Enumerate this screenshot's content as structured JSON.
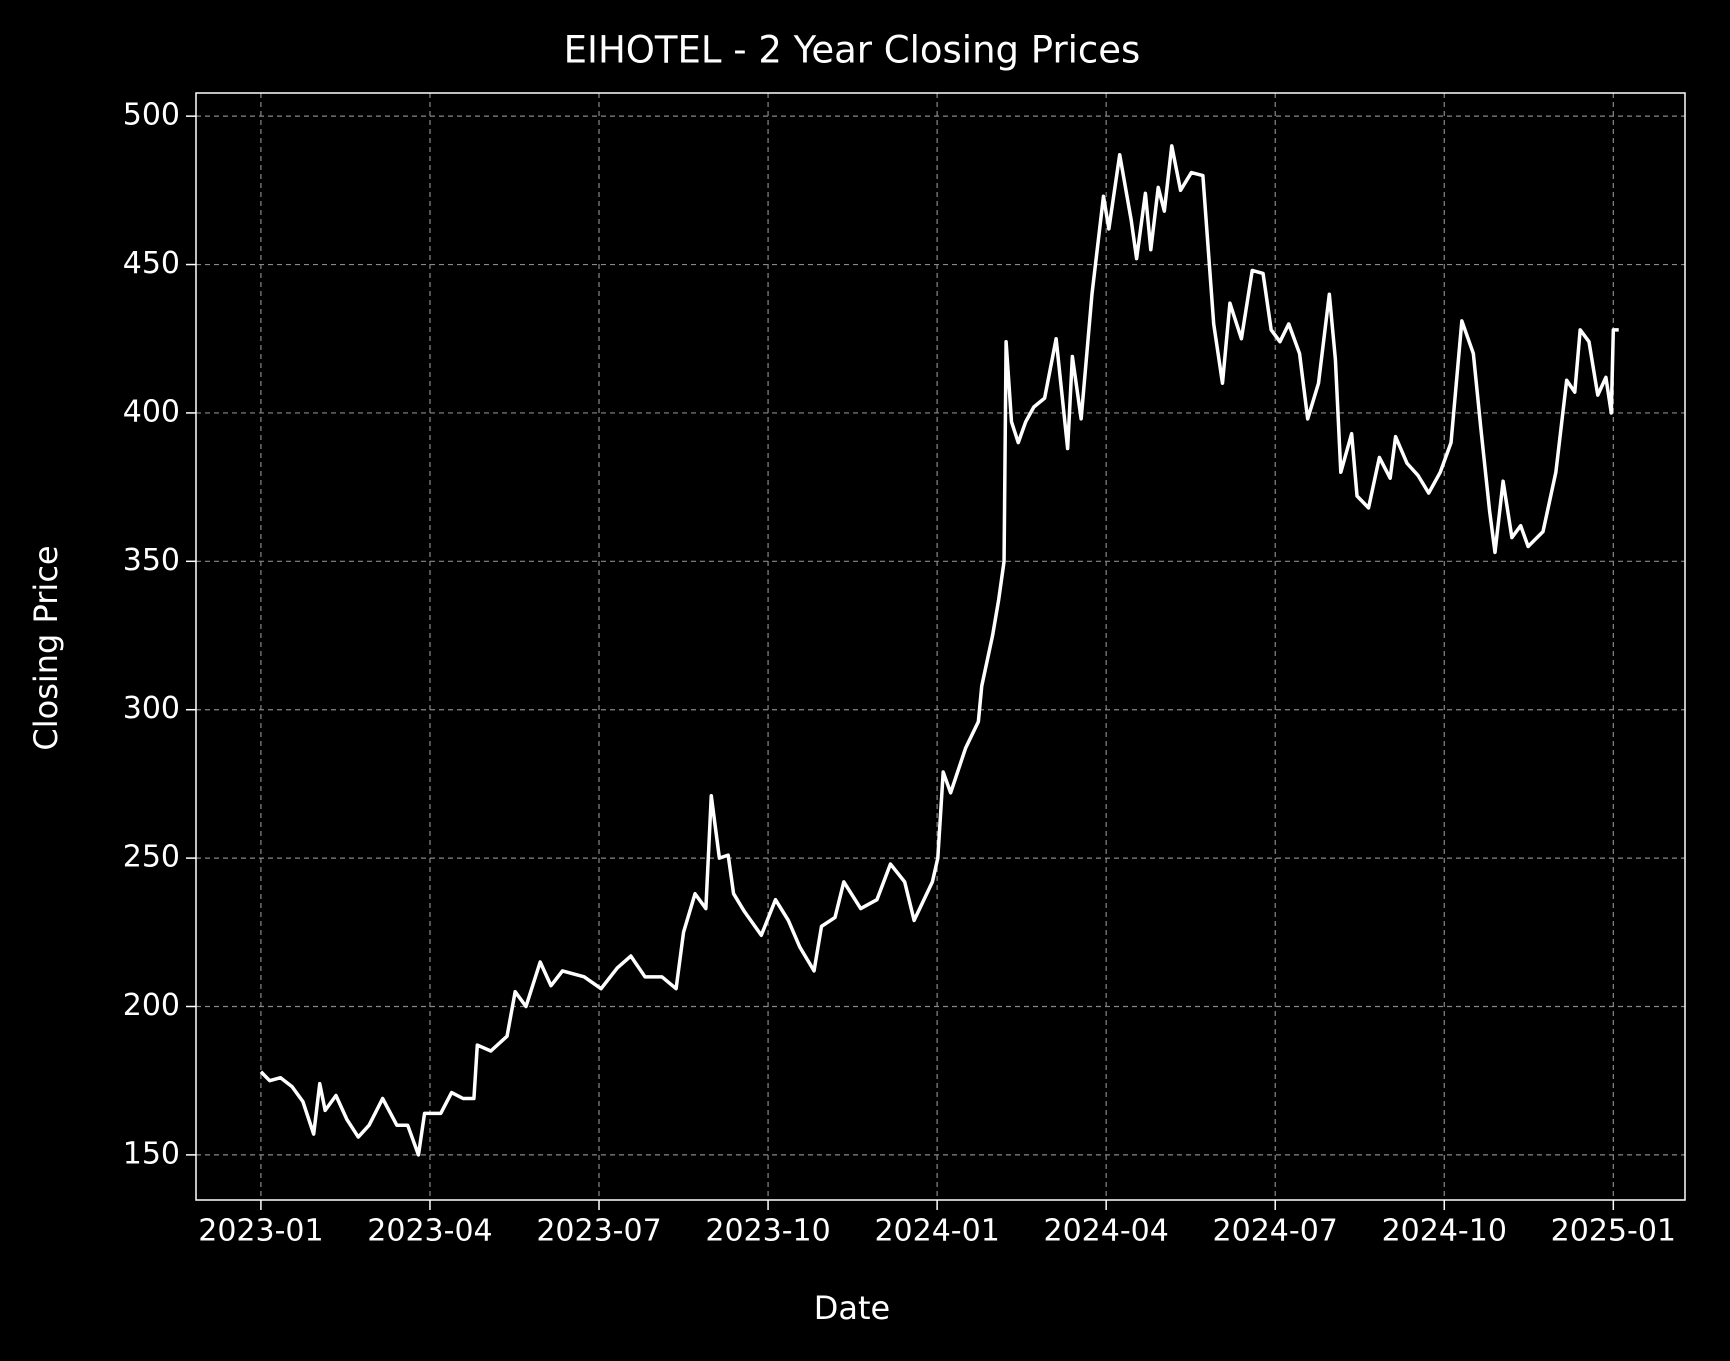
{
  "chart_data": {
    "type": "line",
    "title": "EIHOTEL - 2 Year Closing Prices",
    "xlabel": "Date",
    "ylabel": "Closing Price",
    "color": "#ffffff",
    "grid": true,
    "xlim": [
      2022.904,
      2025.106
    ],
    "ylim": [
      134.8,
      507.8
    ],
    "xticks": [
      {
        "value": 2023,
        "label": "2023-01"
      },
      {
        "value": 2023.25,
        "label": "2023-04"
      },
      {
        "value": 2023.5,
        "label": "2023-07"
      },
      {
        "value": 2023.75,
        "label": "2023-10"
      },
      {
        "value": 2024,
        "label": "2024-01"
      },
      {
        "value": 2024.25,
        "label": "2024-04"
      },
      {
        "value": 2024.5,
        "label": "2024-07"
      },
      {
        "value": 2024.75,
        "label": "2024-10"
      },
      {
        "value": 2025,
        "label": "2025-01"
      }
    ],
    "yticks": [
      150,
      200,
      250,
      300,
      350,
      400,
      450,
      500
    ],
    "x": [
      2023.0,
      2023.013,
      2023.029,
      2023.046,
      2023.062,
      2023.078,
      2023.087,
      2023.095,
      2023.111,
      2023.127,
      2023.144,
      2023.16,
      2023.18,
      2023.201,
      2023.217,
      2023.233,
      2023.242,
      2023.266,
      2023.282,
      2023.299,
      2023.315,
      2023.32,
      2023.34,
      2023.364,
      2023.376,
      2023.392,
      2023.413,
      2023.429,
      2023.446,
      2023.478,
      2023.503,
      2023.527,
      2023.547,
      2023.568,
      2023.593,
      2023.614,
      2023.625,
      2023.642,
      2023.658,
      2023.666,
      2023.678,
      2023.691,
      2023.699,
      2023.715,
      2023.74,
      2023.761,
      2023.78,
      2023.797,
      2023.818,
      2023.829,
      2023.849,
      2023.862,
      2023.887,
      2023.911,
      2023.931,
      2023.952,
      2023.966,
      2023.993,
      2024.001,
      2024.009,
      2024.02,
      2024.042,
      2024.061,
      2024.066,
      2024.082,
      2024.091,
      2024.099,
      2024.102,
      2024.11,
      2024.12,
      2024.131,
      2024.143,
      2024.159,
      2024.176,
      2024.193,
      2024.2,
      2024.213,
      2024.229,
      2024.246,
      2024.254,
      2024.27,
      2024.287,
      2024.295,
      2024.308,
      2024.316,
      2024.327,
      2024.336,
      2024.347,
      2024.36,
      2024.376,
      2024.393,
      2024.409,
      2024.422,
      2024.433,
      2024.45,
      2024.466,
      2024.482,
      2024.494,
      2024.507,
      2024.52,
      2024.536,
      2024.548,
      2024.564,
      2024.58,
      2024.589,
      2024.597,
      2024.613,
      2024.621,
      2024.638,
      2024.654,
      2024.67,
      2024.678,
      2024.695,
      2024.711,
      2024.727,
      2024.744,
      2024.76,
      2024.776,
      2024.793,
      2024.804,
      2024.817,
      2024.825,
      2024.837,
      2024.85,
      2024.863,
      2024.874,
      2024.896,
      2024.915,
      2024.931,
      2024.943,
      2024.951,
      2024.964,
      2024.977,
      2024.989,
      2024.997,
      2025.0,
      2025.008
    ],
    "values": [
      178,
      175,
      176,
      173,
      168,
      157,
      174,
      165,
      170,
      162,
      156,
      160,
      169,
      160,
      160,
      150,
      164,
      164,
      171,
      169,
      169,
      187,
      185,
      190,
      205,
      200,
      215,
      207,
      212,
      210,
      206,
      213,
      217,
      210,
      210,
      206,
      225,
      238,
      233,
      271,
      250,
      251,
      238,
      232,
      224,
      236,
      229,
      220,
      212,
      227,
      230,
      242,
      233,
      236,
      248,
      242,
      229,
      242,
      250,
      279,
      272,
      287,
      296,
      308,
      325,
      337,
      350,
      424,
      397,
      390,
      397,
      402,
      405,
      425,
      388,
      419,
      398,
      440,
      473,
      462,
      487,
      465,
      452,
      474,
      455,
      476,
      468,
      490,
      475,
      481,
      480,
      430,
      410,
      437,
      425,
      448,
      447,
      428,
      424,
      430,
      420,
      398,
      410,
      440,
      418,
      380,
      393,
      372,
      368,
      385,
      378,
      392,
      383,
      379,
      373,
      380,
      390,
      431,
      420,
      395,
      367,
      353,
      377,
      358,
      362,
      355,
      360,
      380,
      411,
      407,
      428,
      424,
      406,
      412,
      400,
      428,
      428
    ]
  }
}
